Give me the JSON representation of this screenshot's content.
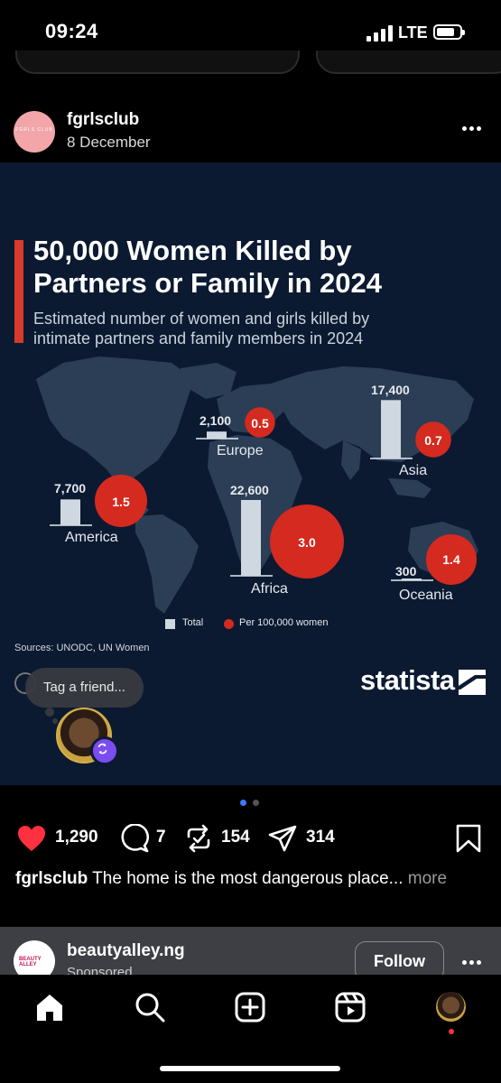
{
  "status_bar": {
    "time": "09:24",
    "network": "LTE",
    "battery_level": 0.8
  },
  "post": {
    "username": "fgrlsclub",
    "date": "8 December",
    "avatar_text": "FGRLS CLUB",
    "infographic": {
      "title_line1": "50,000 Women Killed by",
      "title_line2": "Partners or Family in 2024",
      "subtitle_line1": "Estimated number of women and girls killed by",
      "subtitle_line2": "intimate partners and family members in 2024",
      "regions": [
        {
          "name": "America",
          "total": "7,700",
          "rate": "1.5"
        },
        {
          "name": "Europe",
          "total": "2,100",
          "rate": "0.5"
        },
        {
          "name": "Africa",
          "total": "22,600",
          "rate": "3.0"
        },
        {
          "name": "Asia",
          "total": "17,400",
          "rate": "0.7"
        },
        {
          "name": "Oceania",
          "total": "300",
          "rate": "1.4"
        }
      ],
      "legend_total": "Total",
      "legend_rate": "Per 100,000 women",
      "sources": "Sources: UNODC, UN Women",
      "brand": "statista",
      "colors": {
        "bar": "#cfd8e0",
        "bubble": "#d42a20",
        "background": "#0b1a31",
        "accent": "#d83a2c"
      }
    },
    "tag_prompt": "Tag a friend...",
    "carousel": {
      "current": 1,
      "total": 2,
      "active_color": "#3a7bfd"
    },
    "likes": "1,290",
    "comments": "7",
    "reposts": "154",
    "shares": "314",
    "caption_user": "fgrlsclub",
    "caption_text": "The home is the most dangerous place...",
    "caption_more": "more"
  },
  "next_post": {
    "username": "beautyalley.ng",
    "subtitle": "Sponsored",
    "avatar_text": "BEAUTY ALLEY",
    "follow_label": "Follow"
  },
  "nav": {
    "items": [
      "home-icon",
      "search-icon",
      "create-icon",
      "reels-icon",
      "profile-avatar"
    ]
  }
}
